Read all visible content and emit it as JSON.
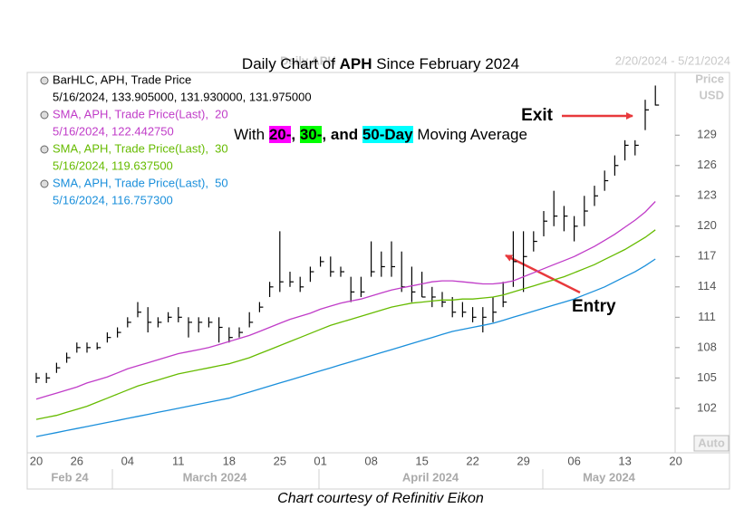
{
  "chart_data": {
    "type": "hlc",
    "title": [
      "Daily Chart of ",
      "APH",
      " Since February 2024"
    ],
    "subtitle": [
      "With ",
      "20-",
      ", ",
      "30-",
      ", and ",
      "50-Day",
      " Moving Average"
    ],
    "chart_name": "Daily APH",
    "date_range": "2/20/2024 - 5/21/2024",
    "axis_label": [
      "Price",
      "USD"
    ],
    "scale_button": "Auto",
    "footer": "Chart courtesy of Refinitiv Eikon",
    "annotations": [
      "Exit",
      "Entry"
    ],
    "categories": [
      "20",
      null,
      null,
      null,
      "26",
      null,
      null,
      null,
      null,
      "04",
      null,
      null,
      null,
      null,
      "11",
      null,
      null,
      null,
      null,
      "18",
      null,
      null,
      null,
      null,
      "25",
      null,
      null,
      null,
      "01",
      null,
      null,
      null,
      null,
      "08",
      null,
      null,
      null,
      null,
      "15",
      null,
      null,
      null,
      null,
      "22",
      null,
      null,
      null,
      null,
      "29",
      null,
      null,
      null,
      null,
      "06",
      null,
      null,
      null,
      null,
      "13",
      null,
      null,
      null,
      null,
      "20"
    ],
    "month_labels": [
      "Feb 24",
      "March 2024",
      "April 2024",
      "May 2024"
    ],
    "ylim": [
      97.6,
      135.2
    ],
    "yticks": [
      102,
      105,
      108,
      111,
      114,
      117,
      120,
      123,
      126,
      129
    ],
    "series": [
      {
        "name": "BarHLC, APH, Trade Price",
        "detail": "5/16/2024, 133.905000, 131.930000, 131.975000",
        "color": "#000000",
        "high": [
          105.5,
          105.5,
          106.5,
          107.5,
          108.5,
          108.5,
          108.5,
          109.5,
          110,
          111,
          112.5,
          112,
          111,
          111.5,
          112,
          111,
          111,
          111,
          111,
          110,
          110,
          111.5,
          112.5,
          114.5,
          119.5,
          115.5,
          115,
          116,
          117,
          117,
          116,
          115,
          115,
          118.5,
          117.5,
          118.5,
          117.5,
          116,
          115.5,
          114,
          113.5,
          113,
          112.5,
          112,
          112,
          113,
          114.5,
          119.5,
          119.5,
          119.5,
          121.5,
          123.5,
          122,
          121,
          123,
          124,
          125.5,
          127,
          128.5,
          128.5,
          132.5,
          133.905,
          null,
          null
        ],
        "low": [
          104.5,
          104.5,
          105.5,
          106.5,
          107.5,
          107.5,
          107.8,
          108.5,
          109,
          110,
          111,
          109.5,
          110,
          110.5,
          110.5,
          109,
          109.5,
          110,
          108.5,
          108.5,
          109,
          110,
          111.5,
          113,
          113.5,
          114,
          113.5,
          114.5,
          116,
          115,
          115,
          112.5,
          113,
          115,
          115,
          115,
          113.5,
          112.5,
          113,
          112,
          112,
          111,
          111,
          110.5,
          109.5,
          110.5,
          112,
          114,
          113.5,
          117.5,
          119,
          120,
          119.5,
          118.5,
          120,
          122,
          123.5,
          125,
          126.5,
          127,
          129.5,
          131.93,
          null,
          null
        ],
        "close": [
          105,
          105,
          106,
          107,
          108,
          108,
          108,
          109,
          109.5,
          110.5,
          111.5,
          110.5,
          110.5,
          111,
          111,
          110.5,
          110.5,
          110.5,
          110,
          109,
          109.5,
          110.5,
          112,
          114,
          114.5,
          114.5,
          114,
          115.5,
          116.5,
          115.5,
          115.5,
          113.5,
          113.5,
          115.5,
          116,
          116,
          114,
          113.5,
          113,
          113,
          112.5,
          111.5,
          111.5,
          111,
          111,
          111.5,
          112.5,
          116.5,
          117,
          118.5,
          120.5,
          121,
          121,
          120,
          121.5,
          123,
          124.5,
          126,
          128,
          128,
          131.5,
          131.975,
          null,
          null
        ]
      },
      {
        "name": "SMA, APH, Trade Price(Last),  20",
        "detail": "5/16/2024, 122.442750",
        "color": "#c03cc8",
        "values": [
          102.9,
          103.2,
          103.5,
          103.8,
          104.1,
          104.5,
          104.8,
          105.1,
          105.5,
          105.9,
          106.2,
          106.5,
          106.8,
          107.1,
          107.4,
          107.6,
          107.8,
          108.0,
          108.3,
          108.6,
          108.9,
          109.2,
          109.6,
          110.0,
          110.4,
          110.8,
          111.1,
          111.4,
          111.8,
          112.1,
          112.4,
          112.6,
          112.8,
          113.1,
          113.4,
          113.7,
          113.9,
          114.1,
          114.3,
          114.5,
          114.6,
          114.6,
          114.5,
          114.4,
          114.3,
          114.3,
          114.4,
          114.6,
          115.0,
          115.4,
          115.8,
          116.2,
          116.6,
          117.0,
          117.5,
          118.0,
          118.6,
          119.2,
          119.9,
          120.6,
          121.4,
          122.44275,
          null,
          null
        ]
      },
      {
        "name": "SMA, APH, Trade Price(Last),  30",
        "detail": "5/16/2024, 119.637500",
        "color": "#66bb00",
        "values": [
          100.9,
          101.1,
          101.3,
          101.6,
          101.9,
          102.2,
          102.6,
          103.0,
          103.4,
          103.8,
          104.2,
          104.5,
          104.8,
          105.1,
          105.4,
          105.6,
          105.8,
          106.0,
          106.2,
          106.4,
          106.7,
          107.0,
          107.4,
          107.8,
          108.2,
          108.6,
          109.0,
          109.4,
          109.8,
          110.2,
          110.5,
          110.8,
          111.1,
          111.4,
          111.7,
          112.0,
          112.2,
          112.4,
          112.5,
          112.6,
          112.7,
          112.7,
          112.8,
          112.8,
          112.9,
          113.0,
          113.2,
          113.5,
          113.8,
          114.1,
          114.4,
          114.7,
          115.0,
          115.4,
          115.8,
          116.2,
          116.7,
          117.2,
          117.7,
          118.3,
          118.9,
          119.6375,
          null,
          null
        ]
      },
      {
        "name": "SMA, APH, Trade Price(Last),  50",
        "detail": "5/16/2024, 116.757300",
        "color": "#1a8fdb",
        "values": [
          99.2,
          99.4,
          99.6,
          99.8,
          100.0,
          100.2,
          100.4,
          100.6,
          100.8,
          101.0,
          101.2,
          101.4,
          101.6,
          101.8,
          102.0,
          102.2,
          102.4,
          102.6,
          102.8,
          103.0,
          103.3,
          103.6,
          103.9,
          104.2,
          104.5,
          104.8,
          105.1,
          105.4,
          105.7,
          106.0,
          106.3,
          106.6,
          106.9,
          107.2,
          107.5,
          107.8,
          108.1,
          108.4,
          108.7,
          109.0,
          109.3,
          109.6,
          109.8,
          110.0,
          110.2,
          110.4,
          110.7,
          111.0,
          111.3,
          111.6,
          111.9,
          112.2,
          112.5,
          112.8,
          113.2,
          113.6,
          114.0,
          114.5,
          115.0,
          115.5,
          116.1,
          116.7573,
          null,
          null
        ]
      }
    ]
  }
}
